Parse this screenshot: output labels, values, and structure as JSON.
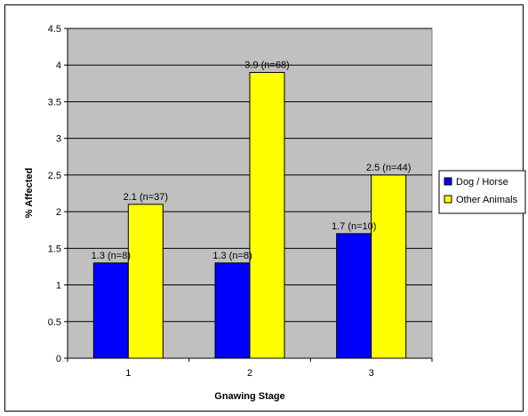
{
  "chart_data": {
    "type": "bar",
    "categories": [
      "1",
      "2",
      "3"
    ],
    "series": [
      {
        "name": "Dog / Horse",
        "color": "#0000ff",
        "values": [
          1.3,
          1.3,
          1.7
        ],
        "labels": [
          "1.3 (n=8)",
          "1.3 (n=8)",
          "1.7 (n=10)"
        ]
      },
      {
        "name": "Other Animals",
        "color": "#ffff00",
        "values": [
          2.1,
          3.9,
          2.5
        ],
        "labels": [
          "2.1 (n=37)",
          "3.9 (n=68)",
          "2.5 (n=44)"
        ]
      }
    ],
    "xlabel": "Gnawing Stage",
    "ylabel": "% Affected",
    "ylim": [
      0,
      4.5
    ],
    "yticks": [
      "0",
      "0.5",
      "1",
      "1.5",
      "2",
      "2.5",
      "3",
      "3.5",
      "4",
      "4.5"
    ],
    "grid": true,
    "plot_background": "#c0c0c0",
    "legend_position": "right"
  }
}
